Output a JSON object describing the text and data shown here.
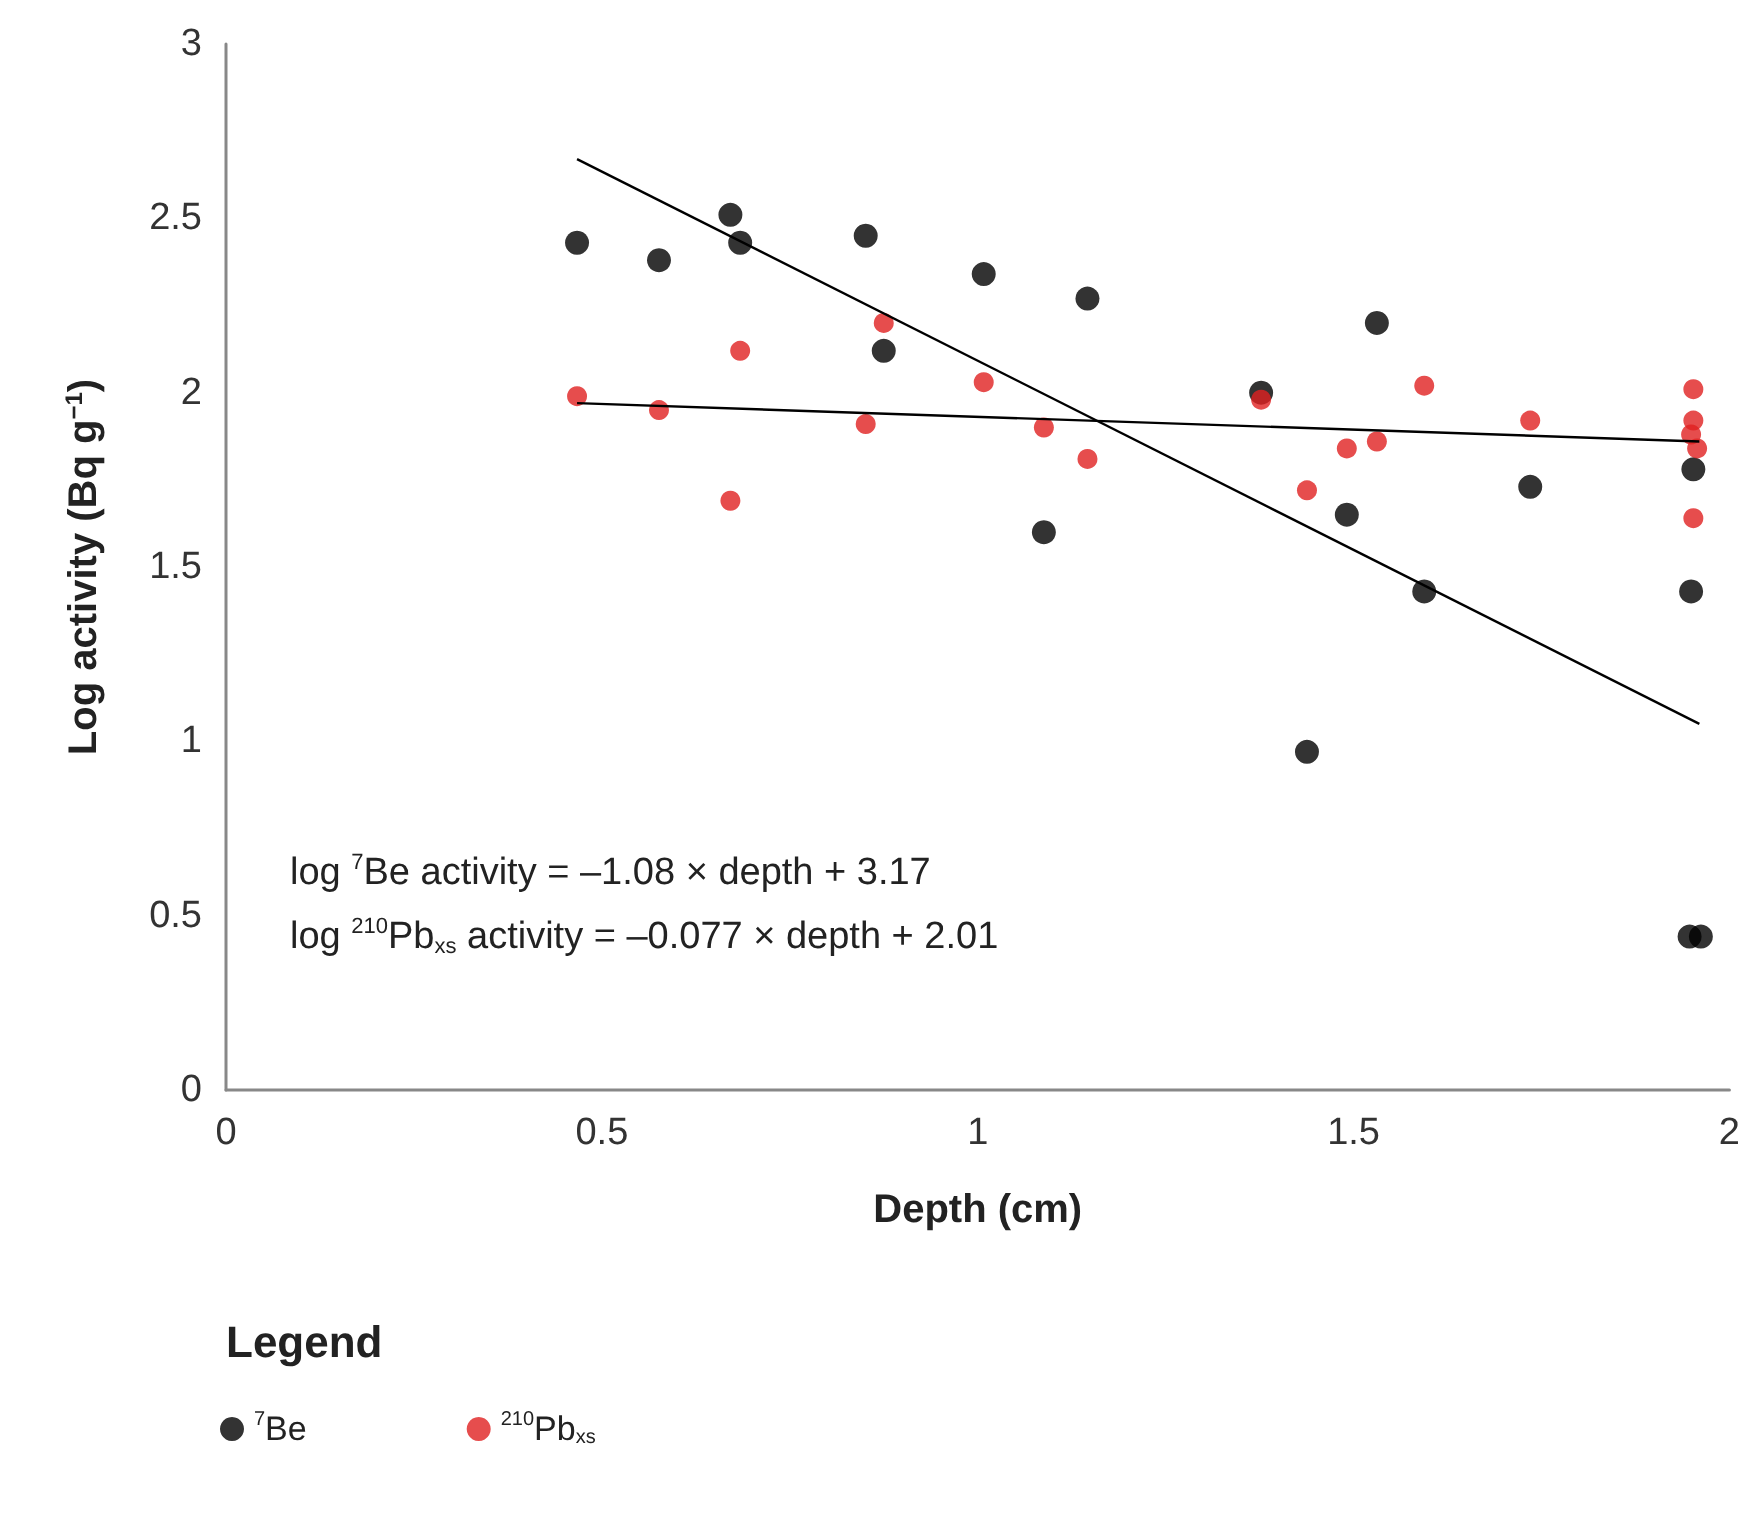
{
  "chart_data": {
    "type": "scatter",
    "xlabel": "Depth (cm)",
    "ylabel": "Log activity (Bq g$^{−1}$)",
    "legend_title": "Legend",
    "legend": "bottom left",
    "grid": false,
    "marker": "circle",
    "xlim": [
      0,
      2
    ],
    "xticks": [
      0,
      0.5,
      1,
      1.5,
      2
    ],
    "ylim": [
      0,
      3
    ],
    "yticks": [
      0,
      0.5,
      1,
      1.5,
      2,
      2.5,
      3
    ],
    "annotations": [
      "log $^{7}$Be activity = –1.08 × depth + 3.17",
      "log $^{210}$Pb$_{xs}$ activity = –0.077 × depth + 2.01"
    ],
    "series": [
      {
        "name": "$^{7}$Be",
        "color": "#000000",
        "x": [
          0.467,
          0.576,
          0.671,
          0.684,
          0.851,
          0.875,
          1.008,
          1.146,
          1.088,
          1.377,
          1.531,
          1.438,
          1.491,
          1.594,
          1.735,
          1.952,
          1.949,
          1.947,
          1.962
        ],
        "values": [
          2.43,
          2.38,
          2.51,
          2.43,
          2.45,
          2.12,
          2.34,
          2.27,
          1.6,
          2.0,
          2.2,
          0.97,
          1.65,
          1.43,
          1.73,
          1.78,
          1.43,
          0.44,
          0.44
        ]
      },
      {
        "name": "$^{210}$Pb$_{xs}$",
        "color": "#e02020",
        "x": [
          0.467,
          0.576,
          0.671,
          0.684,
          0.851,
          0.875,
          1.008,
          1.088,
          1.146,
          1.377,
          1.438,
          1.491,
          1.531,
          1.594,
          1.735,
          1.952,
          1.952,
          1.949,
          1.957,
          1.952
        ],
        "values": [
          1.99,
          1.95,
          1.69,
          2.12,
          1.91,
          2.2,
          2.03,
          1.9,
          1.81,
          1.98,
          1.72,
          1.84,
          1.86,
          2.02,
          1.92,
          2.01,
          1.92,
          1.88,
          1.84,
          1.64
        ]
      },
      {
        "type": "line",
        "color": "#000000",
        "marker": "none",
        "line_style": "solid",
        "x": [
          0.467,
          1.96
        ],
        "values": [
          2.67,
          1.05
        ]
      },
      {
        "type": "line",
        "color": "#000000",
        "marker": "none",
        "line_style": "solid",
        "x": [
          0.467,
          1.96
        ],
        "values": [
          1.97,
          1.86
        ]
      }
    ]
  }
}
